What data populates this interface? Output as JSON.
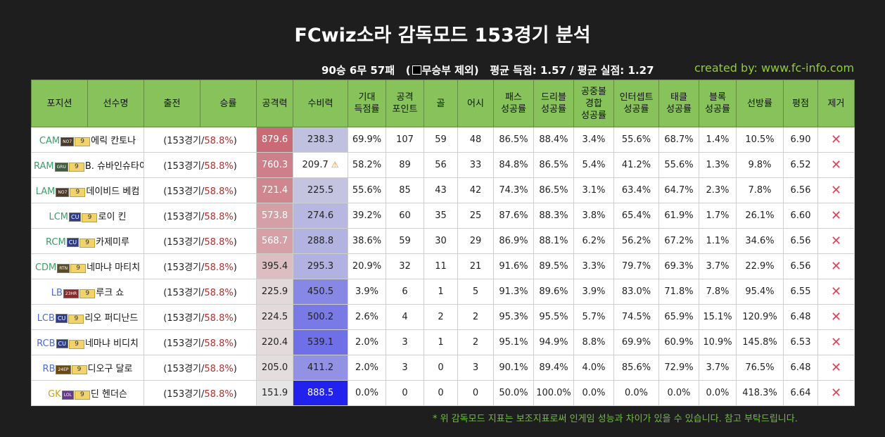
{
  "title": "FCwiz소라 감독모드 153경기 분석",
  "summary": {
    "record": "90승 6무 57패",
    "draw_note_open": "(",
    "draw_note": "무승부 제외)",
    "avg_text": "평균 득점: 1.57 / 평균 실점: 1.27"
  },
  "credit": "created by: www.fc-info.com",
  "columns": [
    "포지션",
    "선수명",
    "출전",
    "승률",
    "공격력",
    "수비력",
    "기대\n득점률",
    "공격\n포인트",
    "골",
    "어시",
    "패스\n성공률",
    "드리블\n성공률",
    "공중볼\n경합\n성공률",
    "인터셉트\n성공률",
    "태클\n성공률",
    "블록\n성공률",
    "선방률",
    "평점",
    "제거"
  ],
  "players": [
    {
      "pos": "CAM",
      "posclass": "pos-FW",
      "season": "NO7",
      "sclass": "",
      "lvl": "9",
      "name": "에릭 칸토나",
      "games": "(153경기/",
      "rate": "58.8%",
      ")": ")",
      "atk": "879.6",
      "def": "238.3",
      "xg": "69.9%",
      "ap": "107",
      "goal": "59",
      "assist": "48",
      "pass": "86.5%",
      "drib": "88.4%",
      "aerial": "3.4%",
      "inter": "55.6%",
      "tackle": "68.7%",
      "block": "1.4%",
      "save": "10.5%",
      "rating": "6.90",
      "warn": ""
    },
    {
      "pos": "RAM",
      "posclass": "pos-FW",
      "season": "GRU",
      "sclass": "gru",
      "lvl": "9",
      "name": "B. 슈바인슈타이거",
      "games": "(153경기/",
      "rate": "58.8%",
      "atk": "760.3",
      "def": "209.7",
      "xg": "58.2%",
      "ap": "89",
      "goal": "56",
      "assist": "33",
      "pass": "84.8%",
      "drib": "86.5%",
      "aerial": "5.4%",
      "inter": "41.2%",
      "tackle": "55.6%",
      "block": "1.3%",
      "save": "9.8%",
      "rating": "6.52",
      "warn": "⚠"
    },
    {
      "pos": "LAM",
      "posclass": "pos-FW",
      "season": "NO7",
      "sclass": "",
      "lvl": "9",
      "name": "데이비드 베컴",
      "games": "(153경기/",
      "rate": "58.8%",
      "atk": "721.4",
      "def": "225.5",
      "xg": "55.6%",
      "ap": "85",
      "goal": "43",
      "assist": "42",
      "pass": "74.3%",
      "drib": "86.5%",
      "aerial": "3.1%",
      "inter": "63.4%",
      "tackle": "64.7%",
      "block": "2.3%",
      "save": "7.8%",
      "rating": "6.56",
      "warn": ""
    },
    {
      "pos": "LCM",
      "posclass": "pos-FW",
      "season": "CU",
      "sclass": "cu",
      "lvl": "9",
      "name": "로이 킨",
      "games": "(153경기/",
      "rate": "58.8%",
      "atk": "573.8",
      "def": "274.6",
      "xg": "39.2%",
      "ap": "60",
      "goal": "35",
      "assist": "25",
      "pass": "87.6%",
      "drib": "88.3%",
      "aerial": "3.8%",
      "inter": "65.4%",
      "tackle": "61.9%",
      "block": "1.7%",
      "save": "26.1%",
      "rating": "6.60",
      "warn": ""
    },
    {
      "pos": "RCM",
      "posclass": "pos-FW",
      "season": "CU",
      "sclass": "cu",
      "lvl": "9",
      "name": "카제미루",
      "games": "(153경기/",
      "rate": "58.8%",
      "atk": "568.7",
      "def": "288.8",
      "xg": "38.6%",
      "ap": "59",
      "goal": "30",
      "assist": "29",
      "pass": "86.9%",
      "drib": "88.1%",
      "aerial": "6.2%",
      "inter": "56.2%",
      "tackle": "67.2%",
      "block": "1.1%",
      "save": "34.6%",
      "rating": "6.56",
      "warn": ""
    },
    {
      "pos": "CDM",
      "posclass": "pos-FW",
      "season": "RTN",
      "sclass": "rtn",
      "lvl": "9",
      "name": "네마냐 마티치",
      "games": "(153경기/",
      "rate": "58.8%",
      "atk": "395.4",
      "def": "295.3",
      "xg": "20.9%",
      "ap": "32",
      "goal": "11",
      "assist": "21",
      "pass": "91.6%",
      "drib": "89.5%",
      "aerial": "3.3%",
      "inter": "79.7%",
      "tackle": "69.3%",
      "block": "3.7%",
      "save": "22.9%",
      "rating": "6.56",
      "warn": ""
    },
    {
      "pos": "LB",
      "posclass": "pos-DF",
      "season": "23HR",
      "sclass": "rtn1",
      "lvl": "9",
      "name": "루크 쇼",
      "games": "(153경기/",
      "rate": "58.8%",
      "atk": "225.9",
      "def": "450.5",
      "xg": "3.9%",
      "ap": "6",
      "goal": "1",
      "assist": "5",
      "pass": "91.3%",
      "drib": "89.6%",
      "aerial": "3.9%",
      "inter": "83.0%",
      "tackle": "71.8%",
      "block": "7.8%",
      "save": "95.4%",
      "rating": "6.55",
      "warn": ""
    },
    {
      "pos": "LCB",
      "posclass": "pos-DF",
      "season": "CU",
      "sclass": "cu",
      "lvl": "9",
      "name": "리오 퍼디난드",
      "games": "(153경기/",
      "rate": "58.8%",
      "atk": "224.5",
      "def": "500.2",
      "xg": "2.6%",
      "ap": "4",
      "goal": "2",
      "assist": "2",
      "pass": "95.3%",
      "drib": "95.5%",
      "aerial": "5.7%",
      "inter": "74.5%",
      "tackle": "65.9%",
      "block": "15.1%",
      "save": "120.9%",
      "rating": "6.48",
      "warn": ""
    },
    {
      "pos": "RCB",
      "posclass": "pos-DF",
      "season": "CU",
      "sclass": "cu",
      "lvl": "9",
      "name": "네마냐 비디치",
      "games": "(153경기/",
      "rate": "58.8%",
      "atk": "220.4",
      "def": "539.1",
      "xg": "2.0%",
      "ap": "3",
      "goal": "1",
      "assist": "2",
      "pass": "95.1%",
      "drib": "94.9%",
      "aerial": "8.8%",
      "inter": "69.9%",
      "tackle": "60.9%",
      "block": "10.9%",
      "save": "145.8%",
      "rating": "6.53",
      "warn": ""
    },
    {
      "pos": "RB",
      "posclass": "pos-DF",
      "season": "24EP",
      "sclass": "s24",
      "lvl": "9",
      "name": "디오구 달로",
      "games": "(153경기/",
      "rate": "58.8%",
      "atk": "205.0",
      "def": "411.2",
      "xg": "2.0%",
      "ap": "3",
      "goal": "0",
      "assist": "3",
      "pass": "90.1%",
      "drib": "89.4%",
      "aerial": "4.0%",
      "inter": "85.6%",
      "tackle": "72.9%",
      "block": "3.7%",
      "save": "76.5%",
      "rating": "6.48",
      "warn": ""
    },
    {
      "pos": "GK",
      "posclass": "pos-GK",
      "season": "LOL",
      "sclass": "lol",
      "lvl": "9",
      "name": "딘 헨더슨",
      "games": "(153경기/",
      "rate": "58.8%",
      "atk": "151.9",
      "def": "888.5",
      "xg": "0.0%",
      "ap": "0",
      "goal": "0",
      "assist": "0",
      "pass": "50.0%",
      "drib": "100.0%",
      "aerial": "0.0%",
      "inter": "0.0%",
      "tackle": "0.0%",
      "block": "0.0%",
      "save": "418.3%",
      "rating": "6.64",
      "warn": ""
    }
  ],
  "colors": {
    "header_bg": "#87c35a",
    "attack_high": "#c96b77",
    "defense_high": "#2222ee",
    "credit": "#8fcf2f",
    "delete": "#d9475a"
  },
  "icons": {
    "delete": "close-icon",
    "warn": "warning-icon"
  },
  "note": "* 위 감독모드 지표는 보조지표로써 인게임 성능과 차이가 있을 수 있습니다. 참고 부탁드립니다."
}
